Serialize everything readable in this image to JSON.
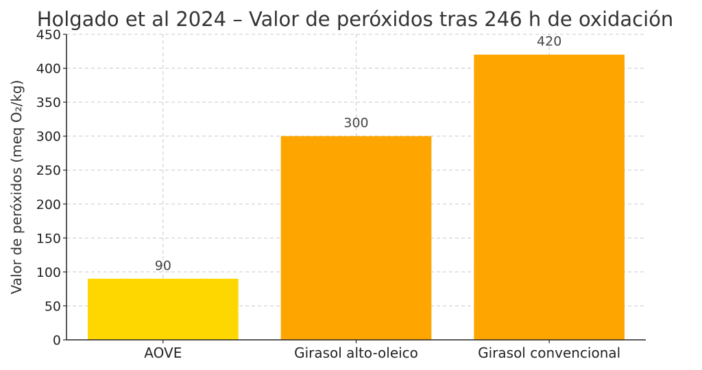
{
  "chart_data": {
    "type": "bar",
    "title": "Holgado et al 2024 – Valor de peróxidos tras 246 h de oxidación",
    "xlabel": "",
    "ylabel": "Valor de peróxidos (meq O₂/kg)",
    "categories": [
      "AOVE",
      "Girasol alto-oleico",
      "Girasol convencional"
    ],
    "values": [
      90,
      300,
      420
    ],
    "data_labels": [
      "90",
      "300",
      "420"
    ],
    "colors": [
      "#FFD700",
      "#FFA500",
      "#FFA500"
    ],
    "ylim": [
      0,
      450
    ],
    "yticks": [
      0,
      50,
      100,
      150,
      200,
      250,
      300,
      350,
      400,
      450
    ],
    "grid": true
  }
}
